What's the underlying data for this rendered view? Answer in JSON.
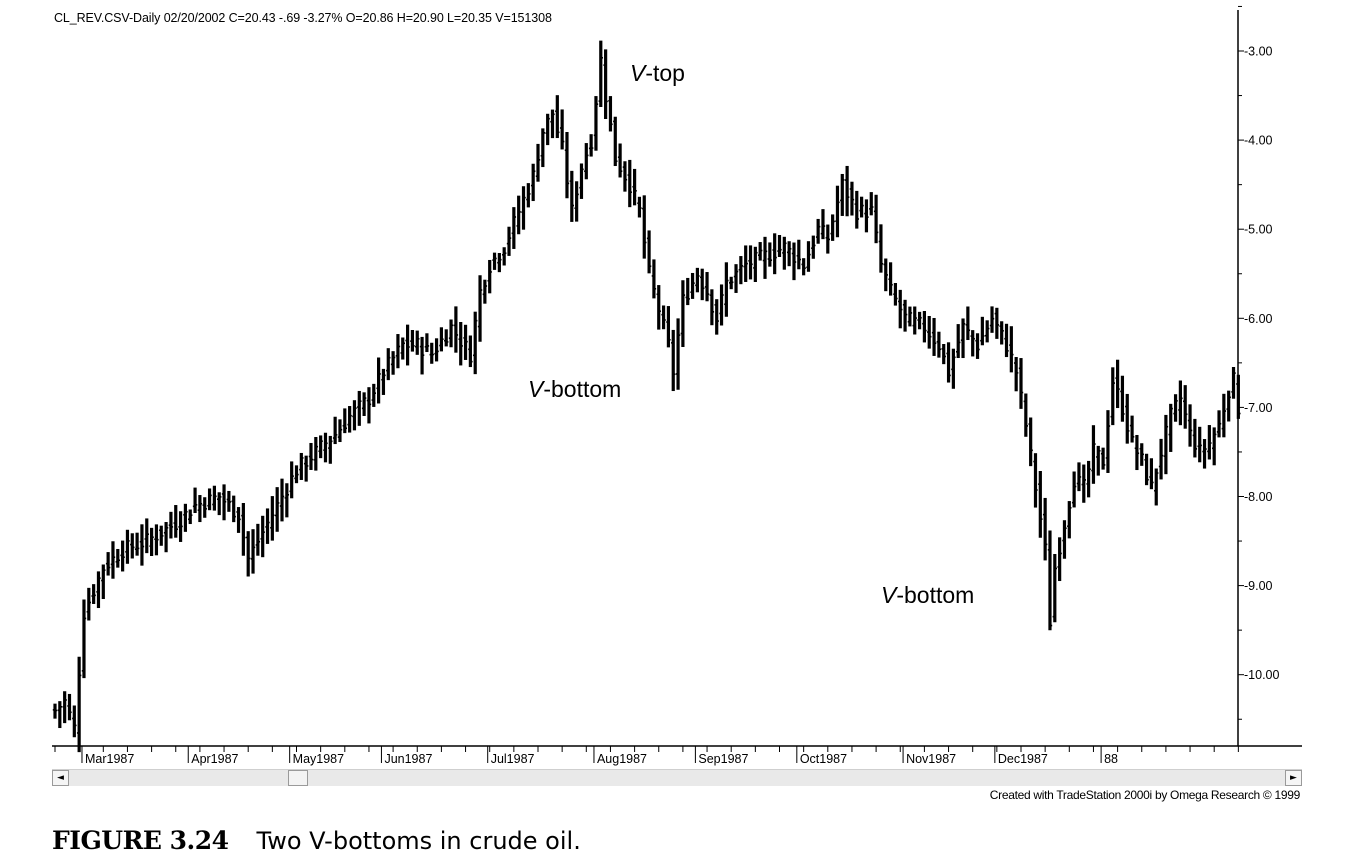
{
  "header": {
    "text": "CL_REV.CSV-Daily   02/20/2002  C=20.43  -.69  -3.27%  O=20.86  H=20.90  L=20.35  V=151308"
  },
  "credit": "Created with TradeStation 2000i by Omega Research © 1999",
  "caption": {
    "label": "FIGURE 3.24",
    "text": "Two V-bottoms in crude oil."
  },
  "scrollbar": {
    "left_arrow": "◄",
    "right_arrow": "►"
  },
  "chart_data": {
    "type": "ohlc",
    "title": "",
    "y_axis": {
      "ticks": [
        "-3.00",
        "-4.00",
        "-5.00",
        "-6.00",
        "-7.00",
        "-8.00",
        "-9.00",
        "-10.00"
      ],
      "tick_values": [
        -3,
        -4,
        -5,
        -6,
        -7,
        -8,
        -9,
        -10
      ],
      "range": [
        -10.8,
        -2.55
      ],
      "position": "right"
    },
    "x_axis": {
      "ticks": [
        "Mar1987",
        "Apr1987",
        "May1987",
        "Jun1987",
        "Jul1987",
        "Aug1987",
        "Sep1987",
        "Oct1987",
        "Nov1987",
        "Dec1987",
        "88"
      ],
      "tick_index": [
        6,
        28,
        49,
        68,
        90,
        112,
        133,
        154,
        176,
        195,
        217
      ]
    },
    "annotations": [
      {
        "prefix": "V",
        "suffix": "-top",
        "index": 113,
        "value": -3.3
      },
      {
        "prefix": "V",
        "suffix": "-bottom",
        "index": 94,
        "value": -6.8
      },
      {
        "prefix": "V",
        "suffix": "-bottom",
        "index": 165,
        "value": -9.1
      }
    ],
    "anchors": [
      [
        0,
        -10.4
      ],
      [
        2,
        -10.3
      ],
      [
        4,
        -10.6
      ],
      [
        6,
        -9.3
      ],
      [
        10,
        -8.8
      ],
      [
        14,
        -8.6
      ],
      [
        19,
        -8.5
      ],
      [
        25,
        -8.3
      ],
      [
        29,
        -8.1
      ],
      [
        34,
        -8.0
      ],
      [
        38,
        -8.2
      ],
      [
        40,
        -8.7
      ],
      [
        42,
        -8.5
      ],
      [
        46,
        -8.1
      ],
      [
        50,
        -7.7
      ],
      [
        54,
        -7.5
      ],
      [
        58,
        -7.3
      ],
      [
        61,
        -7.1
      ],
      [
        65,
        -6.9
      ],
      [
        68,
        -6.6
      ],
      [
        72,
        -6.3
      ],
      [
        75,
        -6.3
      ],
      [
        78,
        -6.4
      ],
      [
        82,
        -6.1
      ],
      [
        86,
        -6.4
      ],
      [
        88,
        -5.7
      ],
      [
        90,
        -5.4
      ],
      [
        93,
        -5.2
      ],
      [
        96,
        -4.8
      ],
      [
        99,
        -4.4
      ],
      [
        101,
        -3.9
      ],
      [
        103,
        -3.7
      ],
      [
        105,
        -4.1
      ],
      [
        107,
        -4.8
      ],
      [
        109,
        -4.3
      ],
      [
        111,
        -4.0
      ],
      [
        113,
        -3.1
      ],
      [
        114,
        -3.5
      ],
      [
        116,
        -4.2
      ],
      [
        119,
        -4.5
      ],
      [
        121,
        -4.8
      ],
      [
        123,
        -5.5
      ],
      [
        125,
        -5.9
      ],
      [
        127,
        -6.3
      ],
      [
        128,
        -6.6
      ],
      [
        130,
        -5.8
      ],
      [
        133,
        -5.5
      ],
      [
        135,
        -5.7
      ],
      [
        137,
        -6.0
      ],
      [
        139,
        -5.6
      ],
      [
        143,
        -5.4
      ],
      [
        147,
        -5.3
      ],
      [
        151,
        -5.2
      ],
      [
        155,
        -5.4
      ],
      [
        158,
        -5.0
      ],
      [
        160,
        -5.1
      ],
      [
        163,
        -4.5
      ],
      [
        166,
        -4.8
      ],
      [
        169,
        -4.8
      ],
      [
        171,
        -5.4
      ],
      [
        173,
        -5.7
      ],
      [
        176,
        -6.0
      ],
      [
        180,
        -6.1
      ],
      [
        183,
        -6.3
      ],
      [
        185,
        -6.6
      ],
      [
        188,
        -6.1
      ],
      [
        191,
        -6.3
      ],
      [
        194,
        -6.0
      ],
      [
        197,
        -6.3
      ],
      [
        199,
        -6.6
      ],
      [
        201,
        -7.2
      ],
      [
        203,
        -7.9
      ],
      [
        205,
        -8.6
      ],
      [
        206,
        -9.4
      ],
      [
        207,
        -8.8
      ],
      [
        209,
        -8.3
      ],
      [
        211,
        -7.8
      ],
      [
        213,
        -7.9
      ],
      [
        215,
        -7.5
      ],
      [
        217,
        -7.6
      ],
      [
        219,
        -6.7
      ],
      [
        221,
        -7.0
      ],
      [
        223,
        -7.4
      ],
      [
        225,
        -7.6
      ],
      [
        227,
        -7.9
      ],
      [
        229,
        -7.5
      ],
      [
        231,
        -7.1
      ],
      [
        233,
        -6.9
      ],
      [
        235,
        -7.3
      ],
      [
        237,
        -7.5
      ],
      [
        239,
        -7.4
      ],
      [
        241,
        -7.2
      ],
      [
        243,
        -6.8
      ],
      [
        244,
        -6.7
      ],
      [
        245,
        -7.0
      ]
    ]
  }
}
